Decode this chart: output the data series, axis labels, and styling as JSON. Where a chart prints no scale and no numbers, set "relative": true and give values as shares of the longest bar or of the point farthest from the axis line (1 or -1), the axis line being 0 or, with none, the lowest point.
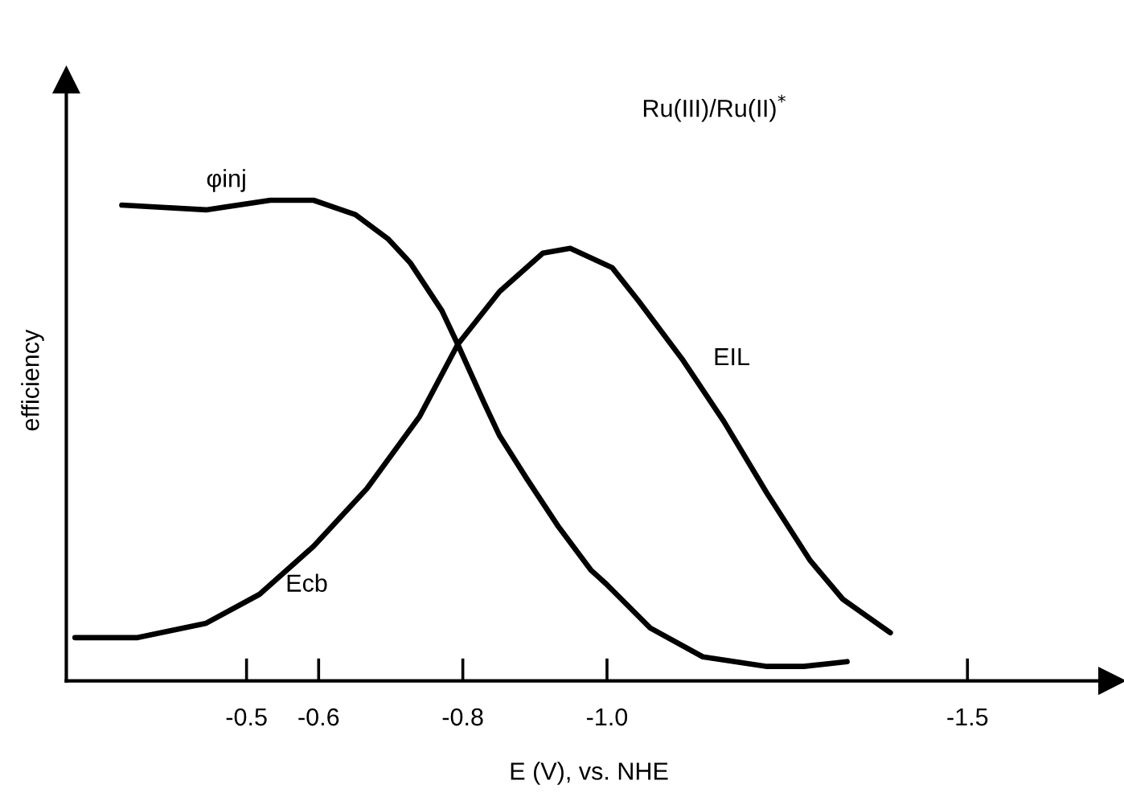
{
  "chart_data": {
    "type": "line",
    "relative": true,
    "xlabel": "E (V), vs. NHE",
    "ylabel": "efficiency",
    "xlim": [
      -0.25,
      -1.7
    ],
    "xticks": [
      -0.5,
      -0.6,
      -0.8,
      {
        "value": -1.0,
        "label": "-1.0"
      },
      -1.5
    ],
    "annotations": [
      "Ru(III)/Ru(II)$^{*}$",
      "Ecb"
    ],
    "grid": false,
    "legend": false,
    "marker": "none",
    "line_style": "solid",
    "series": [
      {
        "name": "φinj",
        "color": "#000000",
        "x": [
          -0.327,
          -0.444,
          -0.533,
          -0.593,
          -0.651,
          -0.696,
          -0.727,
          -0.771,
          -0.793,
          -0.829,
          -0.851,
          -0.889,
          -0.933,
          -0.978,
          -1.0,
          -1.06,
          -1.133,
          -1.222,
          -1.273,
          -1.333
        ],
        "values": [
          0.99,
          0.98,
          1.0,
          1.0,
          0.97,
          0.92,
          0.87,
          0.77,
          0.7,
          0.58,
          0.51,
          0.42,
          0.32,
          0.23,
          0.2,
          0.11,
          0.05,
          0.03,
          0.03,
          0.04
        ]
      },
      {
        "name": "EIL",
        "color": "#000000",
        "x": [
          -0.262,
          -0.349,
          -0.444,
          -0.518,
          -0.593,
          -0.667,
          -0.74,
          -0.793,
          -0.851,
          -0.911,
          -0.949,
          -1.007,
          -1.044,
          -1.104,
          -1.162,
          -1.222,
          -1.282,
          -1.327,
          -1.393
        ],
        "values": [
          0.09,
          0.09,
          0.12,
          0.18,
          0.28,
          0.4,
          0.55,
          0.7,
          0.81,
          0.89,
          0.9,
          0.86,
          0.79,
          0.67,
          0.54,
          0.39,
          0.25,
          0.17,
          0.1
        ]
      }
    ]
  }
}
